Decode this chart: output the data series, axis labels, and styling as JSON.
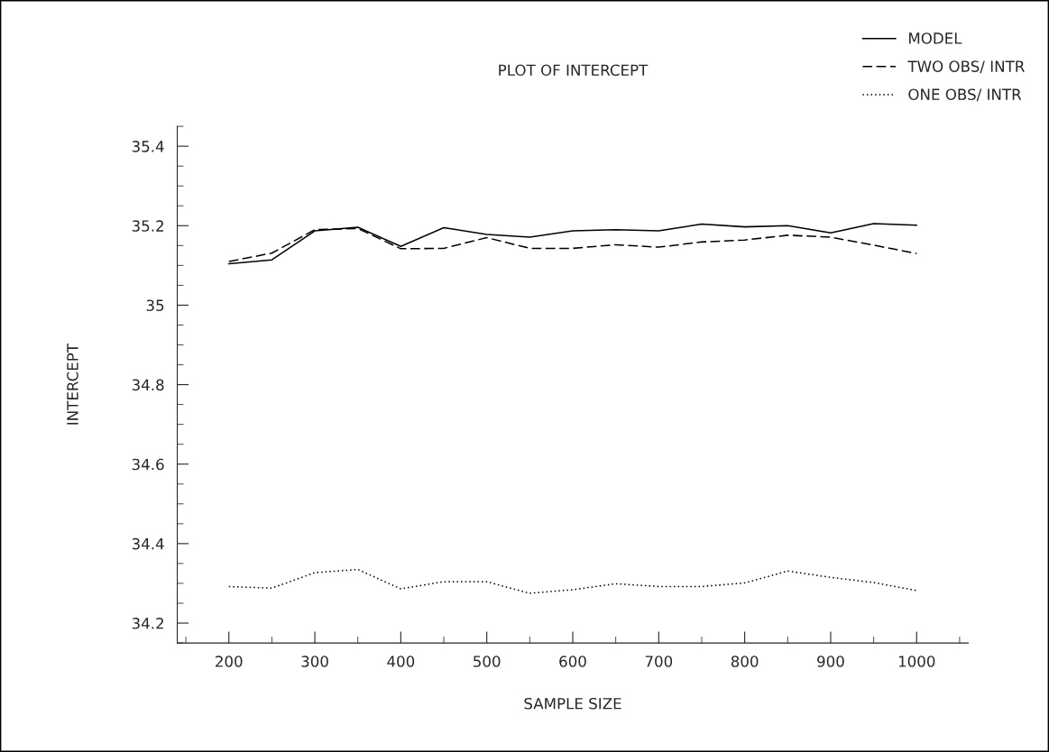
{
  "chart_data": {
    "type": "line",
    "title": "PLOT OF INTERCEPT",
    "xlabel": "SAMPLE SIZE",
    "ylabel": "INTERCEPT",
    "x": [
      200,
      250,
      300,
      350,
      400,
      450,
      500,
      550,
      600,
      650,
      700,
      750,
      800,
      850,
      900,
      950,
      1000
    ],
    "series": [
      {
        "name": "MODEL",
        "color": "#000000",
        "line_style": "solid",
        "values": [
          35.104,
          35.114,
          35.187,
          35.196,
          35.148,
          35.195,
          35.178,
          35.171,
          35.187,
          35.19,
          35.187,
          35.204,
          35.197,
          35.2,
          35.182,
          35.205,
          35.201
        ]
      },
      {
        "name": "TWO OBS/ INTR",
        "color": "#000000",
        "line_style": "dashed",
        "values": [
          35.11,
          35.131,
          35.19,
          35.193,
          35.142,
          35.143,
          35.17,
          35.143,
          35.143,
          35.152,
          35.146,
          35.159,
          35.164,
          35.176,
          35.171,
          35.151,
          35.13
        ]
      },
      {
        "name": "ONE OBS/ INTR",
        "color": "#000000",
        "line_style": "dotted",
        "values": [
          34.292,
          34.288,
          34.327,
          34.335,
          34.286,
          34.304,
          34.304,
          34.275,
          34.284,
          34.299,
          34.292,
          34.292,
          34.301,
          34.331,
          34.315,
          34.302,
          34.282
        ]
      }
    ],
    "xlim": [
      140,
      1060
    ],
    "xticks": [
      200,
      300,
      400,
      500,
      600,
      700,
      800,
      900,
      1000
    ],
    "ylim": [
      34.15,
      35.45
    ],
    "yticks": [
      34.2,
      34.4,
      34.6,
      34.8,
      35,
      35.2,
      35.4
    ],
    "grid": false,
    "legend": "top right",
    "marker": "none"
  }
}
